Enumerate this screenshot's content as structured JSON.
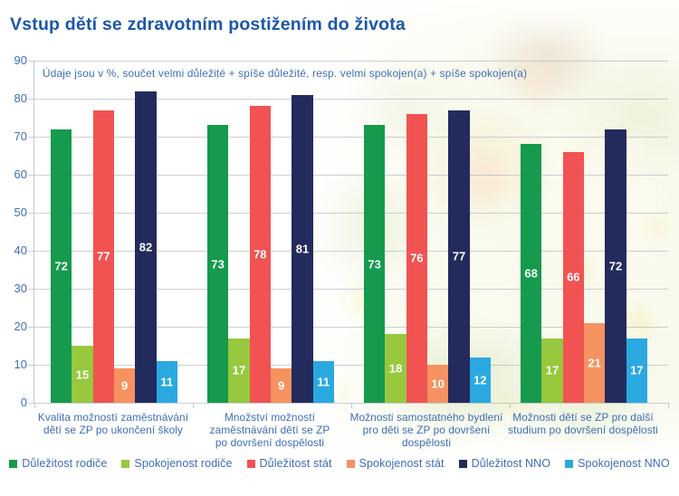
{
  "title": "Vstup dětí se zdravotním postižením do života",
  "note": "Údaje jsou v %, součet velmi důležité + spíše důležité, resp. velmi spokojen(a) + spíše spokojen(a)",
  "colors": {
    "title": "#1b57a8",
    "text": "#3e6db6",
    "value_label": "#ffffff"
  },
  "chart_data": {
    "type": "bar",
    "categories": [
      "Kvalita možností zaměstnávání\ndětí se ZP po ukončení školy",
      "Množství možností\nzaměstnávání dětí se ZP\npo dovršení dospělosti",
      "Možnosti samostatného bydlení\npro děti se ZP po dovršení\ndospělosti",
      "Možnosti dětí se ZP pro další\nstudium po dovršení dospělosti"
    ],
    "series": [
      {
        "name": "Důležitost rodiče",
        "color": "#169a4d",
        "values": [
          72,
          73,
          73,
          68
        ]
      },
      {
        "name": "Spokojenost rodiče",
        "color": "#97c83e",
        "values": [
          15,
          17,
          18,
          17
        ]
      },
      {
        "name": "Důležitost stát",
        "color": "#f05352",
        "values": [
          77,
          78,
          76,
          66
        ]
      },
      {
        "name": "Spokojenost stát",
        "color": "#f6925f",
        "values": [
          9,
          9,
          10,
          21
        ]
      },
      {
        "name": "Důležitost NNO",
        "color": "#232b5c",
        "values": [
          82,
          81,
          77,
          72
        ]
      },
      {
        "name": "Spokojenost NNO",
        "color": "#2aa9e1",
        "values": [
          11,
          11,
          12,
          17
        ]
      }
    ],
    "y_axis": {
      "min": 0,
      "max": 90,
      "step": 10,
      "ticks": [
        90,
        80,
        70,
        60,
        50,
        40,
        30,
        20,
        10,
        0
      ]
    },
    "grid": true,
    "legend_position": "bottom",
    "value_labels": "inside-center"
  }
}
